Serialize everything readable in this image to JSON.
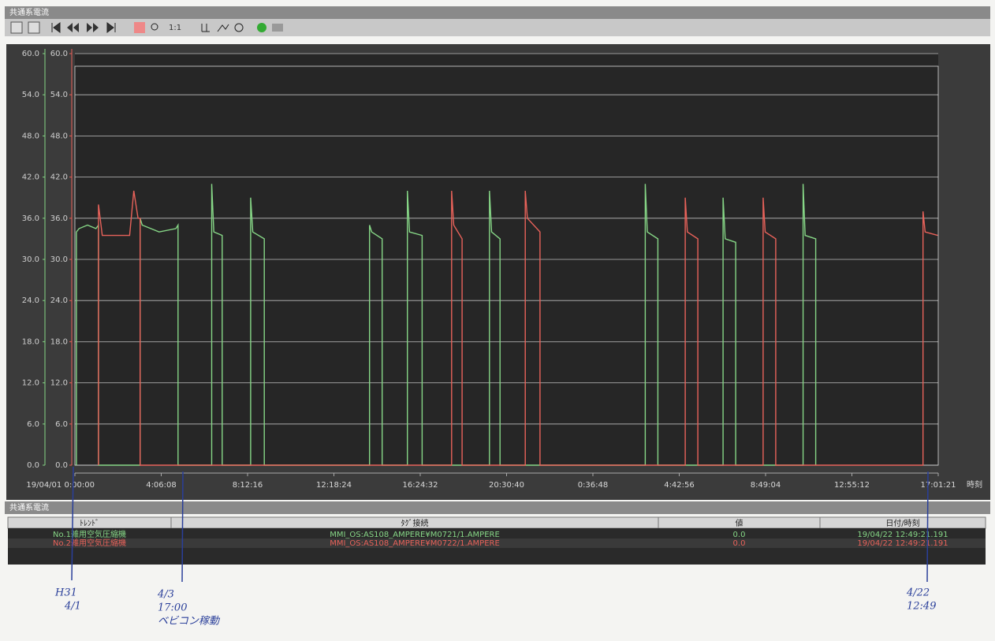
{
  "window_title": "共通系電流",
  "toolbar": {
    "zoom_label": "1:1"
  },
  "chart_data": {
    "type": "line",
    "x_label": "時刻",
    "xlim": [
      0,
      41.0225
    ],
    "xticks": [
      {
        "value": 0,
        "label": "19/04/01 0:00:00"
      },
      {
        "value": 4.1022,
        "label": "4:06:08"
      },
      {
        "value": 8.2044,
        "label": "8:12:16"
      },
      {
        "value": 12.3067,
        "label": "12:18:24"
      },
      {
        "value": 16.4089,
        "label": "16:24:32"
      },
      {
        "value": 20.5111,
        "label": "20:30:40"
      },
      {
        "value": 24.6133,
        "label": "0:36:48"
      },
      {
        "value": 28.7156,
        "label": "4:42:56"
      },
      {
        "value": 32.8178,
        "label": "8:49:04"
      },
      {
        "value": 36.92,
        "label": "12:55:12"
      },
      {
        "value": 41.0225,
        "label": "17:01:21"
      }
    ],
    "ylim": [
      0,
      60
    ],
    "yticks": [
      {
        "value": 0,
        "label": "0.0"
      },
      {
        "value": 6,
        "label": "6.0"
      },
      {
        "value": 12,
        "label": "12.0"
      },
      {
        "value": 18,
        "label": "18.0"
      },
      {
        "value": 24,
        "label": "24.0"
      },
      {
        "value": 30,
        "label": "30.0"
      },
      {
        "value": 36,
        "label": "36.0"
      },
      {
        "value": 42,
        "label": "42.0"
      },
      {
        "value": 48,
        "label": "48.0"
      },
      {
        "value": 54,
        "label": "54.0"
      },
      {
        "value": 60,
        "label": "60.0"
      }
    ],
    "y2lim": [
      0,
      60
    ],
    "y2ticks": [
      {
        "value": 0,
        "label": "0.0"
      },
      {
        "value": 6,
        "label": "6.0"
      },
      {
        "value": 12,
        "label": "12.0"
      },
      {
        "value": 18,
        "label": "18.0"
      },
      {
        "value": 24,
        "label": "24.0"
      },
      {
        "value": 30,
        "label": "30.0"
      },
      {
        "value": 36,
        "label": "36.0"
      },
      {
        "value": 42,
        "label": "42.0"
      },
      {
        "value": 48,
        "label": "48.0"
      },
      {
        "value": 54,
        "label": "54.0"
      },
      {
        "value": 60,
        "label": "60.0"
      }
    ],
    "grid": true,
    "series": [
      {
        "name": "No.1雑用空気圧縮機",
        "color": "#86d686",
        "x": [
          0.07,
          0.07,
          0.2,
          0.6,
          1.0,
          1.12,
          1.12,
          3.1,
          3.1,
          3.2,
          4.0,
          4.8,
          4.9,
          4.9,
          6.5,
          6.5,
          6.6,
          7.0,
          7.0,
          8.35,
          8.35,
          8.45,
          9.0,
          9.0,
          14.0,
          14.0,
          14.1,
          14.6,
          14.6,
          15.8,
          15.8,
          15.9,
          16.5,
          16.5,
          19.7,
          19.7,
          19.8,
          20.2,
          20.2,
          27.1,
          27.1,
          27.2,
          27.7,
          27.7,
          30.8,
          30.8,
          30.9,
          31.4,
          31.4,
          34.6,
          34.6,
          34.7,
          35.2,
          35.2
        ],
        "values": [
          0,
          34,
          34.5,
          35,
          34.5,
          35,
          0,
          0,
          36,
          35,
          34,
          34.5,
          35,
          0,
          0,
          41,
          34,
          33.5,
          0,
          0,
          39,
          34,
          33,
          0,
          0,
          35,
          34,
          33,
          0,
          0,
          40,
          34,
          33.5,
          0,
          0,
          40,
          34,
          33,
          0,
          0,
          41,
          34,
          33,
          0,
          0,
          39,
          33,
          32.5,
          0,
          0,
          41,
          33.5,
          33,
          0
        ]
      },
      {
        "name": "No.2雑用空気圧縮機",
        "color": "#e8625a",
        "axis": "y2",
        "x": [
          1.12,
          1.12,
          1.3,
          2.0,
          2.6,
          2.8,
          3.0,
          3.1,
          3.1,
          17.9,
          17.9,
          18.0,
          18.4,
          18.4,
          21.4,
          21.4,
          21.5,
          22.1,
          22.1,
          29.0,
          29.0,
          29.1,
          29.6,
          29.6,
          32.7,
          32.7,
          32.8,
          33.3,
          33.3,
          40.3,
          40.3,
          40.4,
          41.0
        ],
        "values": [
          0,
          38,
          33.5,
          33.5,
          33.5,
          40,
          36,
          36,
          0,
          0,
          40,
          35,
          33,
          0,
          0,
          40,
          36,
          34,
          0,
          0,
          39,
          34,
          33,
          0,
          0,
          39,
          34,
          33,
          0,
          0,
          37,
          34,
          33.5
        ]
      }
    ]
  },
  "panel": {
    "title": "共通系電流",
    "columns": [
      "ﾄﾚﾝﾄﾞ",
      "ﾀｸﾞ接続",
      "値",
      "日付/時刻"
    ],
    "rows": [
      [
        "No.1雑用空気圧縮機",
        "MMI_OS:AS108_AMPERE¥M0721/1.AMPERE",
        "0.0",
        "19/04/22 12:49:21.191"
      ],
      [
        "No.2雑用空気圧縮機",
        "MMI_OS:AS108_AMPERE¥M0722/1.AMPERE",
        "0.0",
        "19/04/22 12:49:21.191"
      ]
    ]
  },
  "annotations": [
    {
      "lines": [
        "H31",
        "4/1"
      ]
    },
    {
      "lines": [
        "4/3",
        "17:00",
        "ベビコン稼動"
      ]
    },
    {
      "lines": [
        "4/22",
        "12:49"
      ]
    }
  ]
}
